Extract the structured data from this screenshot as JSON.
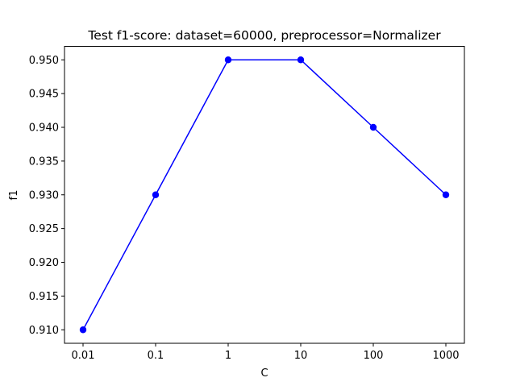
{
  "chart_data": {
    "type": "line",
    "title": "Test f1-score: dataset=60000, preprocessor=Normalizer",
    "xlabel": "C",
    "ylabel": "f1",
    "categories": [
      "0.01",
      "0.1",
      "1",
      "10",
      "100",
      "1000"
    ],
    "series": [
      {
        "values": [
          0.91,
          0.93,
          0.95,
          0.95,
          0.94,
          0.93
        ],
        "color": "#0000ff",
        "marker": "circle"
      }
    ],
    "ylim": [
      0.908,
      0.952
    ],
    "yticks": [
      "0.910",
      "0.915",
      "0.920",
      "0.925",
      "0.930",
      "0.935",
      "0.940",
      "0.945",
      "0.950"
    ],
    "grid": false,
    "legend": "none"
  }
}
